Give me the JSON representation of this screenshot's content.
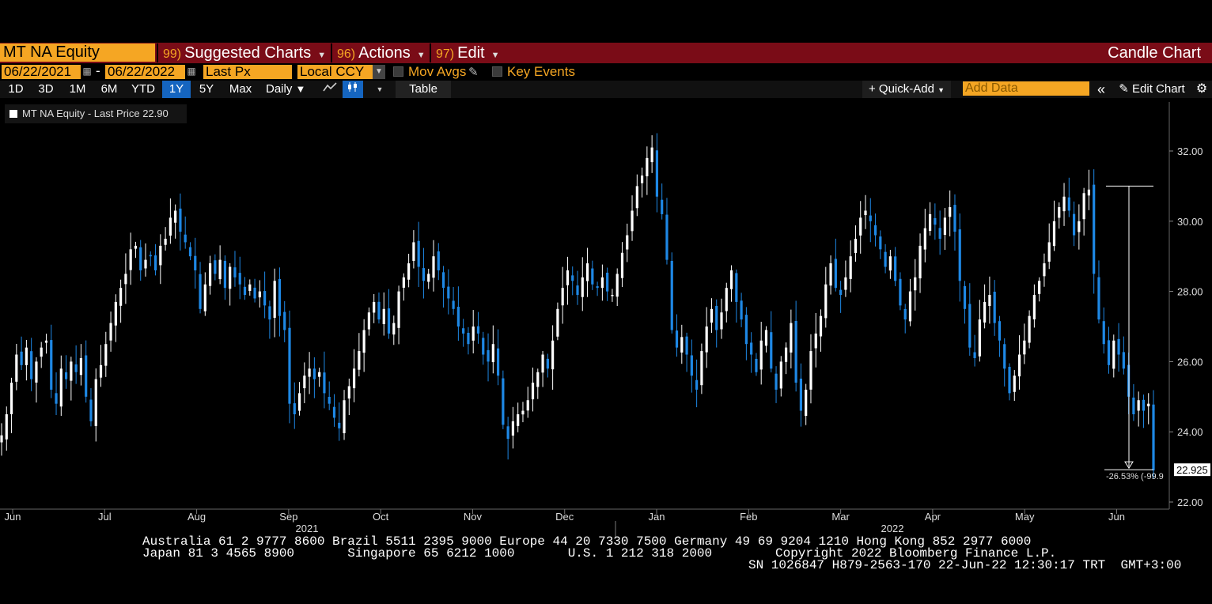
{
  "header": {
    "ticker": "MT NA Equity",
    "menu": [
      {
        "num": "99)",
        "label": "Suggested Charts"
      },
      {
        "num": "96)",
        "label": "Actions"
      },
      {
        "num": "97)",
        "label": "Edit"
      }
    ],
    "chart_kind": "Candle Chart"
  },
  "controls": {
    "start_date": "06/22/2021",
    "end_date": "06/22/2022",
    "date_sep": "-",
    "price_field": "Last Px",
    "currency": "Local CCY",
    "mov_avgs": "Mov Avgs",
    "key_events": "Key Events"
  },
  "toolbar": {
    "periods": [
      "1D",
      "3D",
      "1M",
      "6M",
      "YTD",
      "1Y",
      "5Y",
      "Max"
    ],
    "active_period": "1Y",
    "frequency": "Daily",
    "table": "Table",
    "quick_add": "+ Quick-Add",
    "add_data_placeholder": "Add Data",
    "edit_chart": "Edit Chart"
  },
  "legend": {
    "label": "MT NA Equity - Last Price 22.90"
  },
  "footer": {
    "line1": "Australia 61 2 9777 8600 Brazil 5511 2395 9000 Europe 44 20 7330 7500 Germany 49 69 9204 1210 Hong Kong 852 2977 6000",
    "line2a": "Japan 81 3 4565 8900       Singapore 65 6212 1000       U.S. 1 212 318 2000",
    "line2b": "Copyright 2022 Bloomberg Finance L.P.",
    "line3": "SN 1026847 H879-2563-170 22-Jun-22 12:30:17 TRT  GMT+3:00"
  },
  "colors": {
    "up": "#ffffff",
    "down": "#1e88e5",
    "accent": "#f5a623",
    "bar": "#7a0c17"
  },
  "chart_data": {
    "type": "candlestick",
    "y_axis": {
      "ticks": [
        22.0,
        24.0,
        26.0,
        28.0,
        30.0,
        32.0
      ],
      "range": [
        21.8,
        33.2
      ]
    },
    "x_axis": {
      "months": [
        "Jun",
        "Jul",
        "Aug",
        "Sep",
        "Oct",
        "Nov",
        "Dec",
        "Jan",
        "Feb",
        "Mar",
        "Apr",
        "May",
        "Jun"
      ],
      "years": [
        "2021",
        "2022"
      ]
    },
    "last_price": "22.925",
    "annotation": "-26.53% (-99.9",
    "close_series": [
      23.9,
      24.5,
      25.4,
      26.2,
      25.9,
      26.4,
      25.5,
      26.0,
      26.4,
      26.6,
      25.2,
      24.8,
      25.8,
      25.5,
      26.0,
      25.7,
      26.1,
      25.0,
      24.3,
      25.5,
      25.9,
      26.5,
      27.1,
      27.7,
      28.1,
      28.5,
      29.2,
      29.3,
      28.6,
      28.9,
      29.0,
      28.6,
      29.3,
      29.5,
      30.1,
      30.3,
      29.7,
      29.4,
      29.0,
      28.6,
      27.5,
      28.2,
      28.8,
      28.5,
      28.9,
      28.1,
      28.7,
      28.4,
      28.2,
      27.9,
      28.2,
      27.8,
      28.0,
      27.6,
      27.2,
      28.3,
      27.3,
      26.9,
      24.8,
      24.5,
      25.1,
      25.6,
      25.8,
      25.5,
      25.7,
      25.1,
      24.8,
      24.4,
      24.1,
      24.9,
      25.3,
      25.8,
      26.3,
      26.9,
      27.4,
      27.7,
      27.2,
      27.5,
      26.8,
      27.1,
      28.0,
      28.4,
      28.8,
      29.4,
      28.7,
      28.3,
      28.5,
      29.0,
      28.6,
      28.1,
      27.8,
      27.5,
      27.0,
      26.8,
      26.5,
      27.0,
      26.8,
      26.2,
      26.0,
      26.5,
      25.6,
      24.2,
      23.8,
      24.3,
      24.5,
      24.6,
      24.9,
      25.4,
      25.7,
      26.2,
      25.8,
      26.6,
      27.5,
      28.1,
      28.6,
      28.3,
      27.9,
      28.4,
      28.8,
      28.2,
      28.1,
      28.4,
      28.0,
      27.9,
      28.5,
      29.1,
      29.6,
      30.3,
      31.0,
      31.3,
      31.8,
      32.1,
      30.7,
      30.2,
      28.9,
      26.9,
      26.4,
      26.7,
      26.2,
      25.6,
      25.2,
      26.3,
      27.0,
      27.5,
      26.9,
      27.4,
      28.1,
      28.6,
      27.7,
      27.2,
      26.5,
      26.2,
      25.7,
      26.6,
      26.9,
      25.8,
      25.2,
      26.0,
      26.4,
      27.1,
      25.4,
      24.6,
      25.2,
      26.3,
      26.8,
      27.3,
      28.2,
      28.8,
      28.1,
      27.9,
      28.4,
      29.0,
      29.5,
      30.1,
      30.3,
      30.0,
      29.6,
      29.2,
      28.7,
      29.0,
      28.3,
      27.6,
      27.2,
      28.0,
      28.4,
      29.3,
      29.8,
      30.2,
      29.9,
      29.5,
      30.1,
      30.4,
      29.7,
      28.3,
      27.5,
      26.4,
      26.1,
      27.2,
      27.7,
      27.9,
      27.1,
      26.6,
      25.8,
      25.1,
      25.6,
      26.2,
      26.6,
      27.3,
      27.9,
      28.3,
      28.8,
      29.4,
      30.0,
      30.4,
      30.7,
      30.3,
      29.6,
      30.0,
      30.8,
      30.9,
      28.5,
      27.2,
      26.5,
      25.9,
      26.6,
      26.2,
      25.8,
      25.0,
      24.5,
      24.9,
      24.6,
      24.8,
      22.9
    ]
  }
}
